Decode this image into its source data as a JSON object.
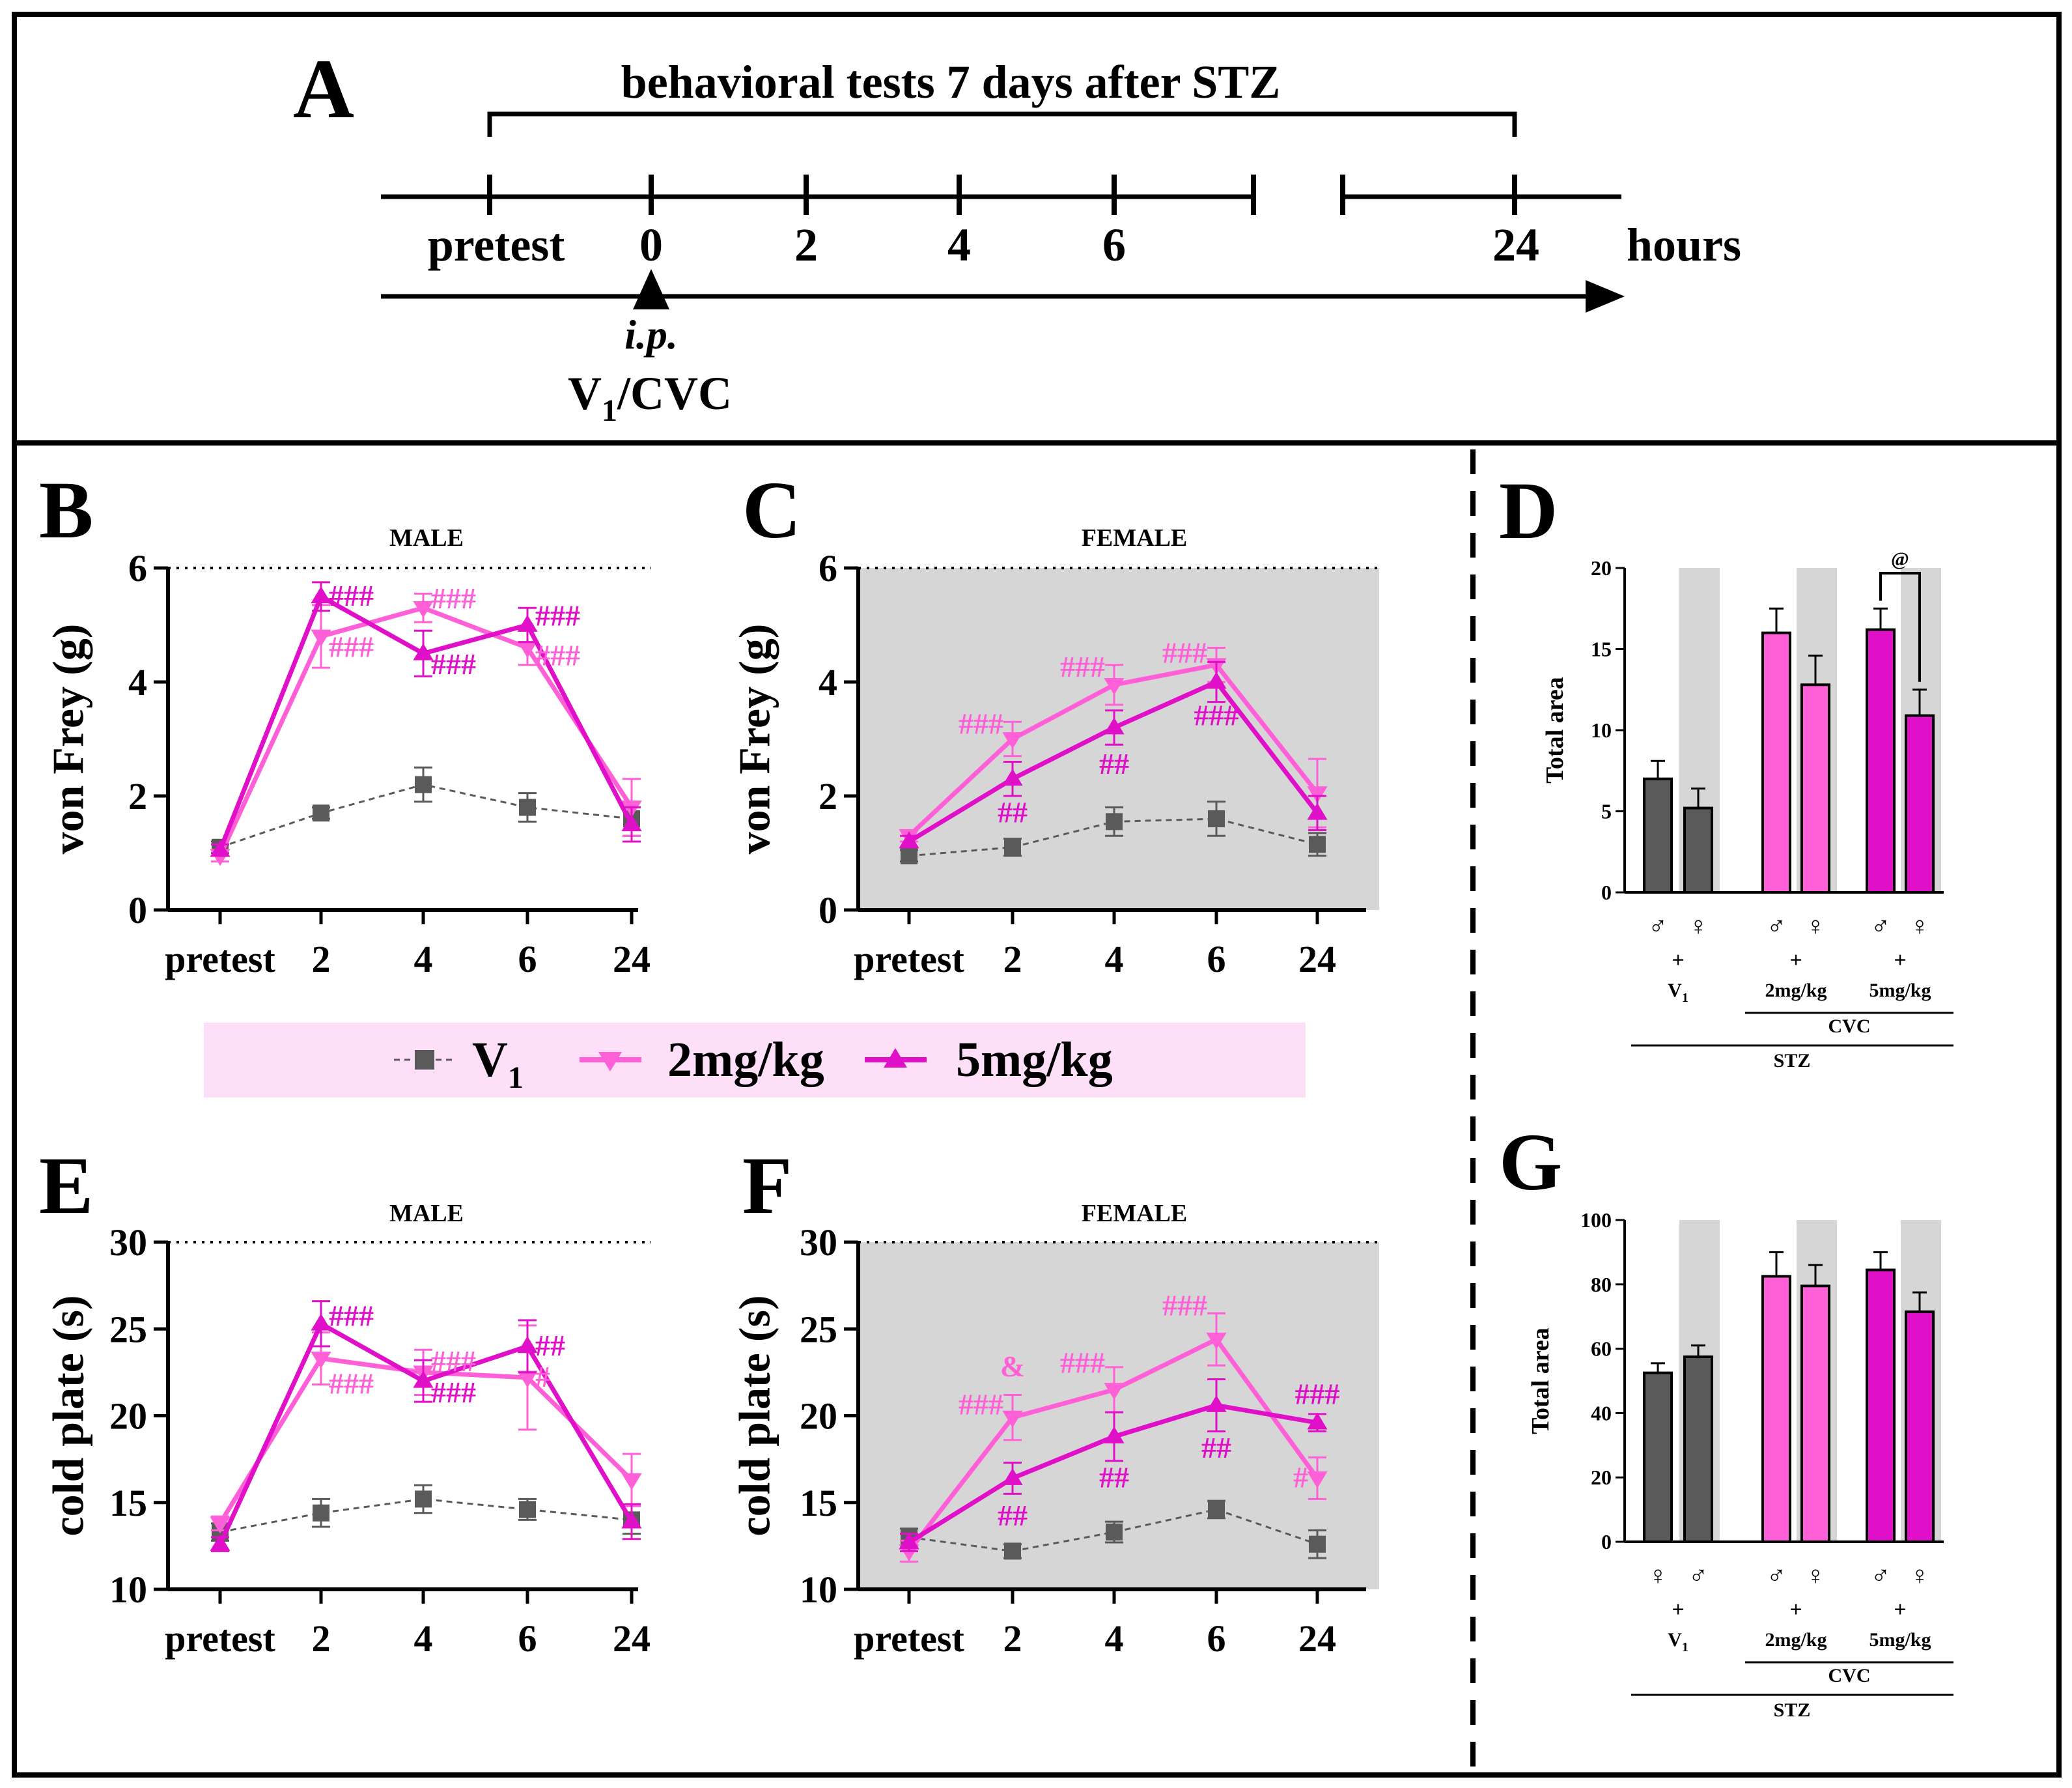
{
  "colors": {
    "vehicle": "#5a5a5a",
    "dose2": "#ff5fd7",
    "dose5": "#e00fc8",
    "female_bg": "#d6d6d6",
    "legend_bg": "#fde0f7",
    "frame": "#000000"
  },
  "panel_a": {
    "letter": "A",
    "bracket_label": "behavioral tests 7 days after STZ",
    "timepoints": [
      "pretest",
      "0",
      "2",
      "4",
      "6",
      "24"
    ],
    "unit": "hours",
    "injection_route": "i.p.",
    "injection_drug_main": "V",
    "injection_drug_sub": "1",
    "injection_drug_rest": "/CVC"
  },
  "legend": {
    "items": [
      {
        "key": "vehicle",
        "label": "V",
        "sub": "1",
        "marker": "square"
      },
      {
        "key": "dose2",
        "label": "2mg/kg",
        "sub": "",
        "marker": "triangle-down"
      },
      {
        "key": "dose5",
        "label": "5mg/kg",
        "sub": "",
        "marker": "triangle-up"
      }
    ]
  },
  "chart_data": [
    {
      "panel": "B",
      "type": "line",
      "title": "MALE",
      "ylabel": "von Frey (g)",
      "categories": [
        "pretest",
        "2",
        "4",
        "6",
        "24"
      ],
      "ylim": [
        0,
        6
      ],
      "yticks": [
        0,
        2,
        4,
        6
      ],
      "baseline": 6,
      "background": "white",
      "series": [
        {
          "name": "V1",
          "key": "vehicle",
          "values": [
            1.1,
            1.7,
            2.2,
            1.8,
            1.6
          ],
          "errors": [
            0.1,
            0.1,
            0.3,
            0.25,
            0.3
          ]
        },
        {
          "name": "2mg/kg",
          "key": "dose2",
          "values": [
            0.95,
            4.8,
            5.3,
            4.6,
            1.8
          ],
          "errors": [
            0.1,
            0.55,
            0.25,
            0.3,
            0.5
          ]
        },
        {
          "name": "5mg/kg",
          "key": "dose5",
          "values": [
            1.05,
            5.5,
            4.5,
            5.0,
            1.5
          ],
          "errors": [
            0.1,
            0.25,
            0.4,
            0.3,
            0.3
          ]
        }
      ],
      "annotations": [
        {
          "text": "###",
          "key": "dose5",
          "cat": 1,
          "value": 5.5,
          "side": "right"
        },
        {
          "text": "###",
          "key": "dose2",
          "cat": 1,
          "value": 4.6,
          "side": "right"
        },
        {
          "text": "###",
          "key": "dose2",
          "cat": 2,
          "value": 5.45,
          "side": "right"
        },
        {
          "text": "###",
          "key": "dose5",
          "cat": 2,
          "value": 4.3,
          "side": "right"
        },
        {
          "text": "###",
          "key": "dose5",
          "cat": 3,
          "value": 5.15,
          "side": "right"
        },
        {
          "text": "###",
          "key": "dose2",
          "cat": 3,
          "value": 4.45,
          "side": "right"
        }
      ]
    },
    {
      "panel": "C",
      "type": "line",
      "title": "FEMALE",
      "ylabel": "von Frey (g)",
      "categories": [
        "pretest",
        "2",
        "4",
        "6",
        "24"
      ],
      "ylim": [
        0,
        6
      ],
      "yticks": [
        0,
        2,
        4,
        6
      ],
      "baseline": 6,
      "background": "grey",
      "series": [
        {
          "name": "V1",
          "key": "vehicle",
          "values": [
            0.95,
            1.1,
            1.55,
            1.6,
            1.15
          ],
          "errors": [
            0.1,
            0.15,
            0.25,
            0.3,
            0.2
          ]
        },
        {
          "name": "2mg/kg",
          "key": "dose2",
          "values": [
            1.3,
            3.0,
            3.95,
            4.3,
            2.05
          ],
          "errors": [
            0.1,
            0.3,
            0.35,
            0.3,
            0.6
          ]
        },
        {
          "name": "5mg/kg",
          "key": "dose5",
          "values": [
            1.2,
            2.3,
            3.2,
            4.0,
            1.7
          ],
          "errors": [
            0.1,
            0.3,
            0.3,
            0.35,
            0.3
          ]
        }
      ],
      "annotations": [
        {
          "text": "###",
          "key": "dose2",
          "cat": 1,
          "value": 3.25,
          "side": "left"
        },
        {
          "text": "##",
          "key": "dose5",
          "cat": 1,
          "value": 1.7,
          "side": "center"
        },
        {
          "text": "###",
          "key": "dose2",
          "cat": 2,
          "value": 4.25,
          "side": "left"
        },
        {
          "text": "##",
          "key": "dose5",
          "cat": 2,
          "value": 2.55,
          "side": "center"
        },
        {
          "text": "###",
          "key": "dose2",
          "cat": 3,
          "value": 4.5,
          "side": "left"
        },
        {
          "text": "###",
          "key": "dose5",
          "cat": 3,
          "value": 3.4,
          "side": "center"
        }
      ]
    },
    {
      "panel": "D",
      "type": "bar",
      "ylabel": "Total area",
      "ylim": [
        0,
        20
      ],
      "yticks": [
        0,
        5,
        10,
        15,
        20
      ],
      "bars": [
        {
          "sex": "♂",
          "key": "vehicle",
          "value": 7.0,
          "error": 1.1,
          "shaded": false
        },
        {
          "sex": "♀",
          "key": "vehicle",
          "value": 5.2,
          "error": 1.2,
          "shaded": true
        },
        {
          "sex": "♂",
          "key": "dose2",
          "value": 16.0,
          "error": 1.5,
          "shaded": false
        },
        {
          "sex": "♀",
          "key": "dose2",
          "value": 12.8,
          "error": 1.8,
          "shaded": true
        },
        {
          "sex": "♂",
          "key": "dose5",
          "value": 16.2,
          "error": 1.3,
          "shaded": false
        },
        {
          "sex": "♀",
          "key": "dose5",
          "value": 10.9,
          "error": 1.6,
          "shaded": true
        }
      ],
      "groups": [
        {
          "label": "V",
          "sub": "1"
        },
        {
          "label": "2mg/kg",
          "sub": ""
        },
        {
          "label": "5mg/kg",
          "sub": ""
        }
      ],
      "plus": "+",
      "bracket": {
        "text": "@",
        "from": 4,
        "to": 5,
        "value": 20.0
      },
      "line1_label": "CVC",
      "line2_label": "STZ"
    },
    {
      "panel": "E",
      "type": "line",
      "title": "MALE",
      "ylabel": "cold plate (s)",
      "categories": [
        "pretest",
        "2",
        "4",
        "6",
        "24"
      ],
      "ylim": [
        10,
        30
      ],
      "yticks": [
        10,
        15,
        20,
        25,
        30
      ],
      "baseline": 30,
      "background": "white",
      "series": [
        {
          "name": "V1",
          "key": "vehicle",
          "values": [
            13.3,
            14.4,
            15.2,
            14.6,
            14.0
          ],
          "errors": [
            0.5,
            0.8,
            0.8,
            0.6,
            0.8
          ]
        },
        {
          "name": "2mg/kg",
          "key": "dose2",
          "values": [
            13.8,
            23.3,
            22.5,
            22.2,
            16.3
          ],
          "errors": [
            0.4,
            1.5,
            1.3,
            3.0,
            1.5
          ]
        },
        {
          "name": "5mg/kg",
          "key": "dose5",
          "values": [
            12.6,
            25.3,
            22.0,
            24.0,
            13.9
          ],
          "errors": [
            0.4,
            1.3,
            1.2,
            1.5,
            1.0
          ]
        }
      ],
      "annotations": [
        {
          "text": "###",
          "key": "dose5",
          "cat": 1,
          "value": 25.7,
          "side": "right"
        },
        {
          "text": "###",
          "key": "dose2",
          "cat": 1,
          "value": 21.8,
          "side": "right"
        },
        {
          "text": "###",
          "key": "dose2",
          "cat": 2,
          "value": 23.1,
          "side": "right"
        },
        {
          "text": "###",
          "key": "dose5",
          "cat": 2,
          "value": 21.3,
          "side": "right"
        },
        {
          "text": "##",
          "key": "dose5",
          "cat": 3,
          "value": 24.0,
          "side": "right"
        },
        {
          "text": "#",
          "key": "dose2",
          "cat": 3,
          "value": 22.2,
          "side": "right"
        }
      ]
    },
    {
      "panel": "F",
      "type": "line",
      "title": "FEMALE",
      "ylabel": "cold plate (s)",
      "categories": [
        "pretest",
        "2",
        "4",
        "6",
        "24"
      ],
      "ylim": [
        10,
        30
      ],
      "yticks": [
        10,
        15,
        20,
        25,
        30
      ],
      "baseline": 30,
      "background": "grey",
      "series": [
        {
          "name": "V1",
          "key": "vehicle",
          "values": [
            13.0,
            12.2,
            13.3,
            14.6,
            12.6
          ],
          "errors": [
            0.5,
            0.4,
            0.6,
            0.5,
            0.8
          ]
        },
        {
          "name": "2mg/kg",
          "key": "dose2",
          "values": [
            12.2,
            19.9,
            21.5,
            24.4,
            16.4
          ],
          "errors": [
            0.6,
            1.3,
            1.3,
            1.5,
            1.2
          ]
        },
        {
          "name": "5mg/kg",
          "key": "dose5",
          "values": [
            12.7,
            16.4,
            18.8,
            20.6,
            19.6
          ],
          "errors": [
            0.5,
            0.9,
            1.4,
            1.5,
            0.5
          ]
        }
      ],
      "annotations": [
        {
          "text": "###",
          "key": "dose2",
          "cat": 1,
          "value": 20.6,
          "side": "left"
        },
        {
          "text": "&",
          "key": "dose2",
          "cat": 1,
          "value": 22.8,
          "side": "center"
        },
        {
          "text": "##",
          "key": "dose5",
          "cat": 1,
          "value": 14.2,
          "side": "center"
        },
        {
          "text": "###",
          "key": "dose2",
          "cat": 2,
          "value": 23.0,
          "side": "left"
        },
        {
          "text": "##",
          "key": "dose5",
          "cat": 2,
          "value": 16.4,
          "side": "center"
        },
        {
          "text": "###",
          "key": "dose2",
          "cat": 3,
          "value": 26.3,
          "side": "left"
        },
        {
          "text": "##",
          "key": "dose5",
          "cat": 3,
          "value": 18.1,
          "side": "center"
        },
        {
          "text": "###",
          "key": "dose5",
          "cat": 4,
          "value": 21.2,
          "side": "center"
        },
        {
          "text": "#",
          "key": "dose2",
          "cat": 4,
          "value": 16.4,
          "side": "left"
        }
      ]
    },
    {
      "panel": "G",
      "type": "bar",
      "ylabel": "Total area",
      "ylim": [
        0,
        100
      ],
      "yticks": [
        0,
        20,
        40,
        60,
        80,
        100
      ],
      "bars": [
        {
          "sex": "♀",
          "key": "vehicle",
          "value": 52.5,
          "error": 3.0,
          "shaded": false
        },
        {
          "sex": "♂",
          "key": "vehicle",
          "value": 57.5,
          "error": 3.5,
          "shaded": true
        },
        {
          "sex": "♂",
          "key": "dose2",
          "value": 82.5,
          "error": 7.5,
          "shaded": false
        },
        {
          "sex": "♀",
          "key": "dose2",
          "value": 79.5,
          "error": 6.5,
          "shaded": true
        },
        {
          "sex": "♂",
          "key": "dose5",
          "value": 84.5,
          "error": 5.5,
          "shaded": false
        },
        {
          "sex": "♀",
          "key": "dose5",
          "value": 71.5,
          "error": 6.0,
          "shaded": true
        }
      ],
      "groups": [
        {
          "label": "V",
          "sub": "1"
        },
        {
          "label": "2mg/kg",
          "sub": ""
        },
        {
          "label": "5mg/kg",
          "sub": ""
        }
      ],
      "plus": "+",
      "bracket": null,
      "line1_label": "CVC",
      "line2_label": "STZ"
    }
  ]
}
